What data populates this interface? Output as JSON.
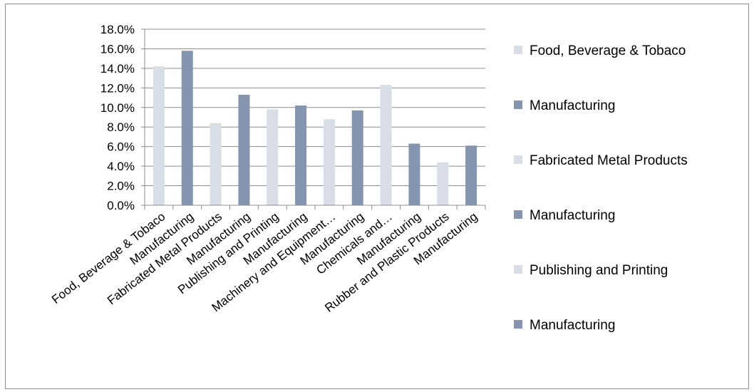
{
  "chart_data": {
    "type": "bar",
    "title": "",
    "xlabel": "",
    "ylabel": "",
    "ylim": [
      0,
      18
    ],
    "y_tick_step": 2,
    "y_tick_format": "percent_1dp",
    "y_ticks": [
      "18.0%",
      "16.0%",
      "14.0%",
      "12.0%",
      "10.0%",
      "8.0%",
      "6.0%",
      "4.0%",
      "2.0%",
      "0.0%"
    ],
    "grid": "horizontal",
    "legend_position": "right",
    "colors": {
      "light": "#d9dde6",
      "dark": "#8595b0"
    },
    "categories": [
      "Food, Beverage & Tobaco",
      "Manufacturing",
      "Fabricated Metal Products",
      "Manufacturing",
      "Publishing and Printing",
      "Manufacturing",
      "Machinery and Equipment…",
      "Manufacturing",
      "Chemicals and…",
      "Manufacturing",
      "Rubber and Plastic Products",
      "Manufacturing"
    ],
    "values": [
      14.2,
      15.8,
      8.4,
      11.3,
      9.8,
      10.2,
      8.8,
      9.7,
      12.3,
      6.3,
      4.4,
      6.1
    ],
    "bar_color_keys": [
      "light",
      "dark",
      "light",
      "dark",
      "light",
      "dark",
      "light",
      "dark",
      "light",
      "dark",
      "light",
      "dark"
    ],
    "legend": [
      {
        "label": "Food, Beverage & Tobaco",
        "color_key": "light"
      },
      {
        "label": "Manufacturing",
        "color_key": "dark"
      },
      {
        "label": "Fabricated Metal Products",
        "color_key": "light"
      },
      {
        "label": "Manufacturing",
        "color_key": "dark"
      },
      {
        "label": "Publishing and Printing",
        "color_key": "light"
      },
      {
        "label": "Manufacturing",
        "color_key": "dark"
      }
    ]
  }
}
